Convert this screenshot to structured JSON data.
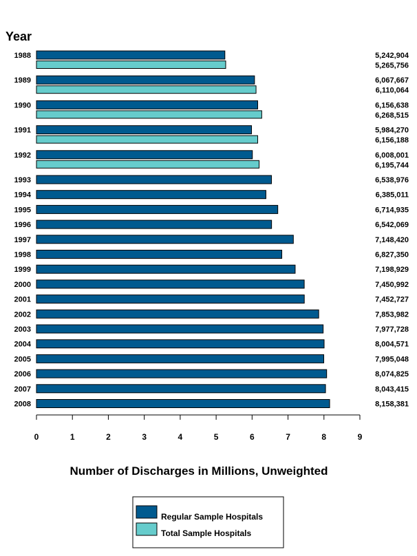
{
  "chart_data": {
    "type": "bar",
    "orientation": "horizontal",
    "title": "",
    "ylabel": "Year",
    "xlabel": "Number of Discharges in Millions, Unweighted",
    "xlim": [
      0,
      9
    ],
    "x_ticks": [
      "0",
      "1",
      "2",
      "3",
      "4",
      "5",
      "6",
      "7",
      "8",
      "9"
    ],
    "grid": false,
    "legend_position": "bottom-center",
    "categories": [
      "1988",
      "1989",
      "1990",
      "1991",
      "1992",
      "1993",
      "1994",
      "1995",
      "1996",
      "1997",
      "1998",
      "1999",
      "2000",
      "2001",
      "2002",
      "2003",
      "2004",
      "2005",
      "2006",
      "2007",
      "2008"
    ],
    "series": [
      {
        "name": "Regular Sample Hospitals",
        "color": "#005a8f",
        "values": [
          5242904,
          6067667,
          6156638,
          5984270,
          6008001,
          6538976,
          6385011,
          6714935,
          6542069,
          7148420,
          6827350,
          7198929,
          7450992,
          7452727,
          7853982,
          7977728,
          8004571,
          7995048,
          8074825,
          8043415,
          8158381
        ],
        "labels": [
          "5,242,904",
          "6,067,667",
          "6,156,638",
          "5,984,270",
          "6,008,001",
          "6,538,976",
          "6,385,011",
          "6,714,935",
          "6,542,069",
          "7,148,420",
          "6,827,350",
          "7,198,929",
          "7,450,992",
          "7,452,727",
          "7,853,982",
          "7,977,728",
          "8,004,571",
          "7,995,048",
          "8,074,825",
          "8,043,415",
          "8,158,381"
        ]
      },
      {
        "name": "Total Sample Hospitals",
        "color": "#66cccc",
        "values": [
          5265756,
          6110064,
          6268515,
          6156188,
          6195744,
          null,
          null,
          null,
          null,
          null,
          null,
          null,
          null,
          null,
          null,
          null,
          null,
          null,
          null,
          null,
          null
        ],
        "labels": [
          "5,265,756",
          "6,110,064",
          "6,268,515",
          "6,156,188",
          "6,195,744",
          null,
          null,
          null,
          null,
          null,
          null,
          null,
          null,
          null,
          null,
          null,
          null,
          null,
          null,
          null,
          null
        ]
      }
    ]
  }
}
